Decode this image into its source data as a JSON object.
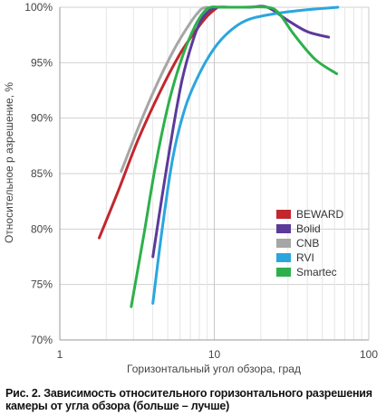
{
  "chart_data": {
    "type": "line",
    "xscale": "log",
    "xlim": [
      1,
      100
    ],
    "ylim": [
      70,
      100
    ],
    "xlabel": "Горизонтальный угол обзора, град",
    "ylabel": "Относительное р азрешение, %",
    "xticks": [
      {
        "value": 1,
        "label": "1"
      },
      {
        "value": 10,
        "label": "10"
      },
      {
        "value": 100,
        "label": "100"
      }
    ],
    "yticks": [
      {
        "value": 70,
        "label": "70%"
      },
      {
        "value": 75,
        "label": "75%"
      },
      {
        "value": 80,
        "label": "80%"
      },
      {
        "value": 85,
        "label": "85%"
      },
      {
        "value": 90,
        "label": "90%"
      },
      {
        "value": 95,
        "label": "95%"
      },
      {
        "value": 100,
        "label": "100%"
      }
    ],
    "grid": true,
    "legend": "bottom-right",
    "series": [
      {
        "name": "BEWARD",
        "color": "#c1272d",
        "x": [
          1.8,
          2.4,
          3.2,
          4.5,
          6.0,
          7.5,
          9.0,
          10.5
        ],
        "y": [
          79.2,
          83.5,
          88.0,
          92.5,
          95.8,
          97.8,
          99.2,
          100
        ]
      },
      {
        "name": "Bolid",
        "color": "#5b3a9a",
        "x": [
          4.0,
          4.6,
          5.4,
          6.2,
          7.2,
          8.2,
          9.3,
          10.5,
          13,
          17,
          22,
          30,
          40,
          55
        ],
        "y": [
          77.5,
          83.0,
          89.0,
          93.5,
          96.8,
          98.8,
          99.7,
          100,
          100,
          100,
          100,
          98.8,
          97.8,
          97.3
        ]
      },
      {
        "name": "CNB",
        "color": "#a6a6a6",
        "x": [
          2.5,
          3.3,
          4.3,
          5.5,
          7.0,
          8.2,
          9.0
        ],
        "y": [
          85.2,
          89.5,
          93.2,
          96.2,
          98.6,
          99.8,
          100
        ]
      },
      {
        "name": "RVI",
        "color": "#2aa6de",
        "x": [
          4.0,
          4.6,
          5.4,
          6.5,
          8.0,
          10,
          12.5,
          16,
          22,
          35,
          63
        ],
        "y": [
          73.3,
          80.0,
          86.5,
          91.0,
          94.0,
          96.3,
          97.8,
          98.8,
          99.3,
          99.7,
          100
        ]
      },
      {
        "name": "Smartec",
        "color": "#2db04b",
        "x": [
          2.9,
          3.5,
          4.2,
          5.1,
          6.2,
          7.5,
          8.6,
          9.5,
          11,
          15,
          22,
          26,
          33,
          45,
          62
        ],
        "y": [
          73.0,
          79.5,
          86.0,
          91.5,
          95.5,
          98.3,
          99.6,
          100,
          100,
          100,
          100,
          99.5,
          97.5,
          95.3,
          94.0
        ]
      }
    ]
  },
  "caption": "Рис. 2. Зависимость относительного горизонтального разрешения камеры от угла обзора (больше – лучше)"
}
